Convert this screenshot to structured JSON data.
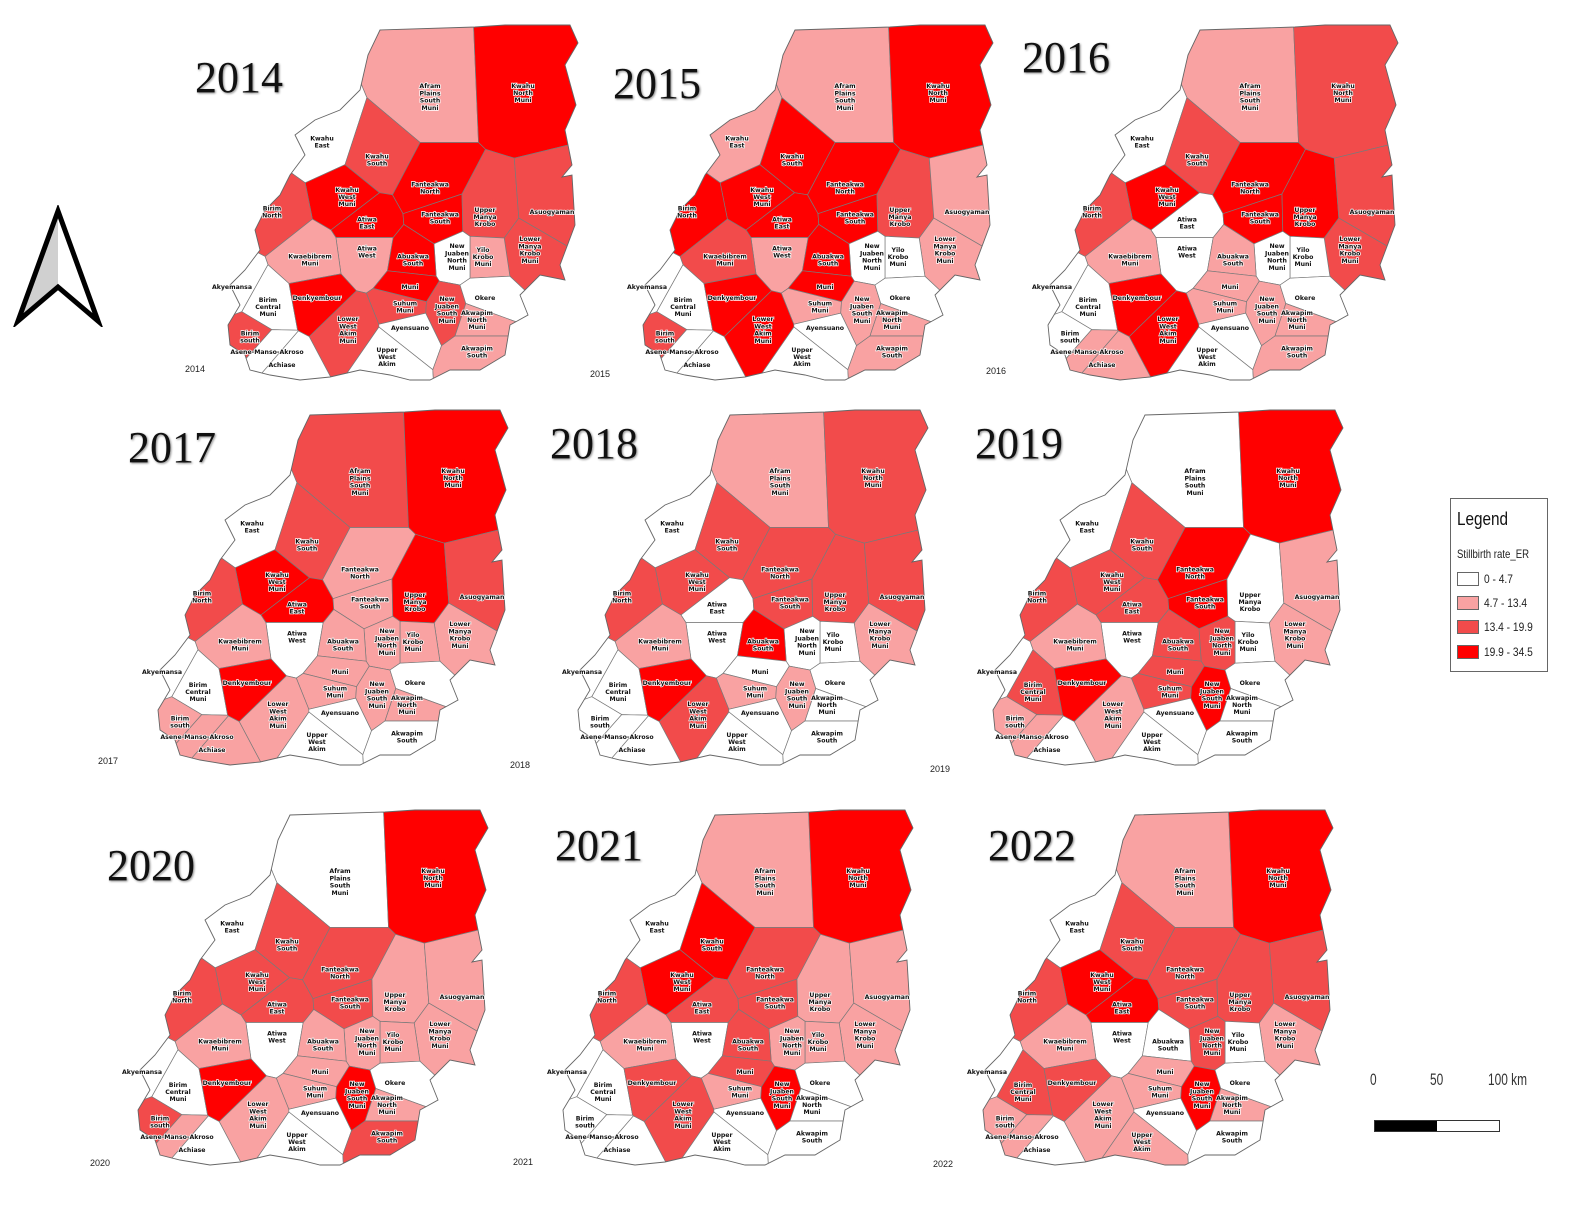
{
  "legend": {
    "title": "Legend",
    "subtitle": "Stillbirth rate_ER",
    "classes": [
      {
        "label": "0 - 4.7",
        "color": "#ffffff"
      },
      {
        "label": "4.7 - 13.4",
        "color": "#f9a2a2"
      },
      {
        "label": "13.4 - 19.9",
        "color": "#f24b4b"
      },
      {
        "label": "19.9 - 34.5",
        "color": "#ff0000"
      }
    ]
  },
  "scale_bar": {
    "labels": [
      "0",
      "50",
      "100 km"
    ]
  },
  "north_arrow": {
    "icon": "north-arrow-icon"
  },
  "districts": [
    "Afram Plains South Muni",
    "Kwahu North Muni",
    "Kwahu East",
    "Kwahu South",
    "Kwahu West Muni",
    "Fanteakwa North",
    "Birim North",
    "Atiwa East",
    "Fanteakwa South",
    "Upper Manya Krobo",
    "Asuogyaman",
    "Lower Manya Krobo Muni",
    "Yilo Krobo Muni",
    "New Juaben North Muni",
    "Atiwa West",
    "Kwaebibrem Muni",
    "Abuakwa South",
    "Akyemansa",
    "Birim Central Muni",
    "Denkyembour",
    "Muni",
    "Suhum Muni",
    "New Juaben South Muni",
    "Okere",
    "Akwapim North Muni",
    "Birim south",
    "Lower West Akim Muni",
    "Ayensuano",
    "Asene-Manso-Akroso",
    "Upper West Akim",
    "Akwapim South",
    "Achiase"
  ],
  "maps": [
    {
      "title": "2014",
      "caption": "2014",
      "classes": [
        1,
        3,
        0,
        2,
        3,
        3,
        2,
        3,
        3,
        2,
        2,
        2,
        1,
        0,
        1,
        1,
        3,
        0,
        0,
        3,
        3,
        2,
        2,
        0,
        1,
        2,
        2,
        0,
        0,
        0,
        1,
        0
      ]
    },
    {
      "title": "2015",
      "caption": "2015",
      "classes": [
        1,
        3,
        1,
        3,
        3,
        3,
        3,
        3,
        3,
        2,
        1,
        1,
        0,
        0,
        1,
        2,
        3,
        0,
        0,
        3,
        3,
        1,
        1,
        0,
        1,
        2,
        3,
        0,
        0,
        0,
        1,
        0
      ]
    },
    {
      "title": "2016",
      "caption": "2016",
      "classes": [
        1,
        2,
        0,
        2,
        3,
        3,
        2,
        0,
        3,
        3,
        2,
        2,
        0,
        0,
        0,
        1,
        1,
        0,
        0,
        3,
        1,
        1,
        1,
        0,
        1,
        0,
        3,
        0,
        1,
        0,
        1,
        1
      ]
    },
    {
      "title": "2017",
      "caption": "2017",
      "classes": [
        2,
        3,
        0,
        2,
        3,
        1,
        2,
        3,
        1,
        3,
        2,
        1,
        1,
        1,
        0,
        1,
        1,
        0,
        0,
        3,
        1,
        1,
        1,
        0,
        1,
        1,
        1,
        0,
        1,
        0,
        0,
        1
      ]
    },
    {
      "title": "2018",
      "caption": "2018",
      "classes": [
        1,
        2,
        0,
        2,
        2,
        2,
        2,
        0,
        2,
        2,
        2,
        1,
        0,
        0,
        0,
        1,
        3,
        0,
        0,
        3,
        0,
        1,
        1,
        0,
        0,
        0,
        2,
        0,
        0,
        0,
        0,
        0
      ]
    },
    {
      "title": "2019",
      "caption": "2019",
      "classes": [
        0,
        3,
        0,
        2,
        2,
        3,
        2,
        2,
        3,
        0,
        1,
        1,
        0,
        2,
        0,
        1,
        2,
        0,
        2,
        3,
        2,
        2,
        3,
        0,
        0,
        1,
        1,
        0,
        1,
        0,
        0,
        0
      ]
    },
    {
      "title": "2020",
      "caption": "2020",
      "classes": [
        0,
        3,
        0,
        2,
        2,
        2,
        2,
        2,
        2,
        1,
        1,
        1,
        1,
        1,
        0,
        1,
        1,
        0,
        0,
        3,
        1,
        1,
        3,
        0,
        1,
        2,
        1,
        0,
        1,
        0,
        2,
        0
      ]
    },
    {
      "title": "2021",
      "caption": "2021",
      "classes": [
        1,
        3,
        0,
        3,
        3,
        2,
        2,
        2,
        2,
        1,
        1,
        1,
        1,
        1,
        0,
        1,
        2,
        0,
        0,
        2,
        2,
        1,
        3,
        0,
        0,
        0,
        2,
        0,
        0,
        0,
        0,
        0
      ]
    },
    {
      "title": "2022",
      "caption": "2022",
      "classes": [
        1,
        3,
        0,
        2,
        3,
        2,
        2,
        3,
        2,
        2,
        2,
        1,
        0,
        2,
        0,
        1,
        0,
        0,
        2,
        2,
        1,
        1,
        3,
        0,
        1,
        1,
        1,
        0,
        1,
        1,
        0,
        0
      ]
    }
  ]
}
